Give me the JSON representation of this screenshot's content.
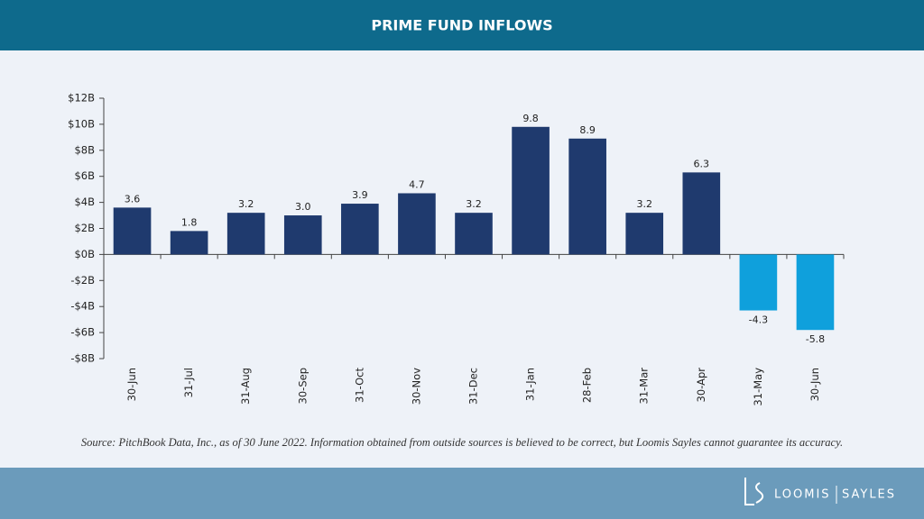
{
  "chart_data": {
    "type": "bar",
    "title": "PRIME FUND INFLOWS",
    "categories": [
      "30-Jun",
      "31-Jul",
      "31-Aug",
      "30-Sep",
      "31-Oct",
      "30-Nov",
      "31-Dec",
      "31-Jan",
      "28-Feb",
      "31-Mar",
      "30-Apr",
      "31-May",
      "30-Jun"
    ],
    "values": [
      3.6,
      1.8,
      3.2,
      3.0,
      3.9,
      4.7,
      3.2,
      9.8,
      8.9,
      3.2,
      6.3,
      -4.3,
      -5.8
    ],
    "value_labels": [
      "3.6",
      "1.8",
      "3.2",
      "3.0",
      "3.9",
      "4.7",
      "3.2",
      "9.8",
      "8.9",
      "3.2",
      "6.3",
      "-4.3",
      "-5.8"
    ],
    "colors": [
      "#1f3a6e",
      "#1f3a6e",
      "#1f3a6e",
      "#1f3a6e",
      "#1f3a6e",
      "#1f3a6e",
      "#1f3a6e",
      "#1f3a6e",
      "#1f3a6e",
      "#1f3a6e",
      "#1f3a6e",
      "#0fa0dc",
      "#0fa0dc"
    ],
    "ylim": [
      -8,
      12
    ],
    "yticks": [
      {
        "value": -8,
        "label": "-$8B"
      },
      {
        "value": -6,
        "label": "-$6B"
      },
      {
        "value": -4,
        "label": "-$4B"
      },
      {
        "value": -2,
        "label": "-$2B"
      },
      {
        "value": 0,
        "label": "$0B"
      },
      {
        "value": 2,
        "label": "$2B"
      },
      {
        "value": 4,
        "label": "$4B"
      },
      {
        "value": 6,
        "label": "$6B"
      },
      {
        "value": 8,
        "label": "$8B"
      },
      {
        "value": 10,
        "label": "$10B"
      },
      {
        "value": 12,
        "label": "$12B"
      }
    ],
    "grid": false,
    "source": "Source: PitchBook Data, Inc., as of 30 June 2022. Information obtained from outside sources is believed to be correct, but Loomis Sayles cannot guarantee its accuracy.",
    "brand": [
      "LOOMIS",
      "SAYLES"
    ]
  }
}
